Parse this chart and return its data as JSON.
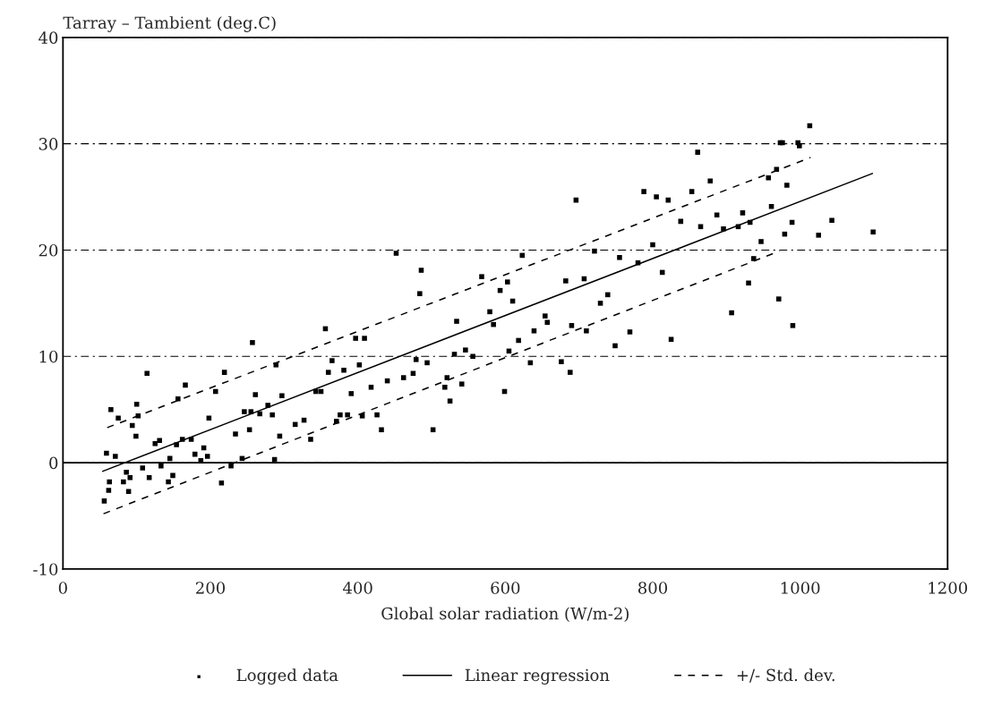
{
  "chart_data": {
    "type": "scatter",
    "xlabel": "Global solar radiation (W/m-2)",
    "ylabel": "Tarray – Tambient (deg.C)",
    "xlim": [
      0,
      1200
    ],
    "xticks": [
      0,
      200,
      400,
      600,
      800,
      1000,
      1200
    ],
    "ylim": [
      -10,
      40
    ],
    "yticks": [
      -10,
      0,
      10,
      20,
      30,
      40
    ],
    "grid": "y",
    "legend": "bottom",
    "ref_lines": [
      {
        "axis": "y",
        "value": 0,
        "color": "#000000",
        "line_style": "solid"
      }
    ],
    "series": [
      {
        "name": "Logged data",
        "marker": "square",
        "color": "#000000",
        "x": [
          257,
          114,
          219,
          166,
          207,
          65,
          100,
          75,
          102,
          261,
          297,
          94,
          99,
          198,
          156,
          246,
          255,
          267,
          278,
          284,
          131,
          125,
          154,
          162,
          174,
          234,
          253,
          294,
          59,
          71,
          145,
          179,
          191,
          196,
          187,
          243,
          287,
          108,
          133,
          86,
          91,
          82,
          63,
          117,
          149,
          143,
          228,
          215,
          62,
          89,
          56,
          610,
          579,
          534,
          584,
          639,
          618,
          356,
          397,
          409,
          365,
          289,
          381,
          360,
          402,
          479,
          494,
          546,
          531,
          556,
          605,
          634,
          343,
          350,
          391,
          418,
          440,
          462,
          475,
          521,
          518,
          541,
          525,
          599,
          315,
          327,
          376,
          386,
          371,
          406,
          426,
          432,
          336,
          502,
          696,
          452,
          623,
          721,
          755,
          486,
          484,
          568,
          603,
          593,
          682,
          707,
          739,
          729,
          654,
          657,
          690,
          710,
          749,
          688,
          676,
          1013,
          973,
          976,
          997,
          999,
          861,
          968,
          957,
          878,
          982,
          788,
          805,
          821,
          853,
          838,
          865,
          887,
          922,
          896,
          916,
          932,
          961,
          989,
          1043,
          979,
          1025,
          1099,
          947,
          800,
          780,
          937,
          813,
          930,
          971,
          907,
          990,
          769,
          825
        ],
        "values": [
          11.3,
          8.4,
          8.5,
          7.3,
          6.7,
          5.0,
          5.5,
          4.2,
          4.4,
          6.4,
          6.3,
          3.5,
          2.5,
          4.2,
          6.0,
          4.8,
          4.8,
          4.6,
          5.4,
          4.5,
          2.1,
          1.8,
          1.7,
          2.2,
          2.2,
          2.7,
          3.1,
          2.5,
          0.9,
          0.6,
          0.4,
          0.8,
          1.4,
          0.6,
          0.2,
          0.4,
          0.3,
          -0.5,
          -0.3,
          -0.9,
          -1.4,
          -1.8,
          -1.8,
          -1.4,
          -1.2,
          -1.8,
          -0.3,
          -1.9,
          -2.6,
          -2.7,
          -3.6,
          15.2,
          14.2,
          13.3,
          13.0,
          12.4,
          11.5,
          12.6,
          11.7,
          11.7,
          9.6,
          9.2,
          8.7,
          8.5,
          9.2,
          9.7,
          9.4,
          10.6,
          10.2,
          10.0,
          10.5,
          9.4,
          6.7,
          6.7,
          6.5,
          7.1,
          7.7,
          8.0,
          8.4,
          8.0,
          7.1,
          7.4,
          5.8,
          6.7,
          3.6,
          4.0,
          4.5,
          4.5,
          3.9,
          4.4,
          4.5,
          3.1,
          2.2,
          3.1,
          24.7,
          19.7,
          19.5,
          19.9,
          19.3,
          18.1,
          15.9,
          17.5,
          17.0,
          16.2,
          17.1,
          17.3,
          15.8,
          15.0,
          13.8,
          13.2,
          12.9,
          12.4,
          11.0,
          8.5,
          9.5,
          31.7,
          30.1,
          30.1,
          30.1,
          29.8,
          29.2,
          27.6,
          26.8,
          26.5,
          26.1,
          25.5,
          25.0,
          24.7,
          25.5,
          22.7,
          22.2,
          23.3,
          23.5,
          22.0,
          22.2,
          22.6,
          24.1,
          22.6,
          22.8,
          21.5,
          21.4,
          21.7,
          20.8,
          20.5,
          18.8,
          19.2,
          17.9,
          16.9,
          15.4,
          14.1,
          12.9,
          12.3,
          11.6
        ]
      },
      {
        "name": "Linear regression",
        "type": "line",
        "line_style": "solid",
        "color": "#000000",
        "x": [
          54,
          1098
        ],
        "values": [
          -0.8,
          27.2
        ]
      },
      {
        "name": "+/- Std. dev.",
        "type": "line",
        "line_style": "dashed",
        "color": "#000000",
        "x": [
          60,
          1014
        ],
        "values": [
          3.3,
          28.7
        ]
      },
      {
        "type": "line",
        "line_style": "dashed",
        "color": "#000000",
        "x": [
          55,
          972
        ],
        "values": [
          -4.8,
          19.9
        ]
      }
    ]
  }
}
